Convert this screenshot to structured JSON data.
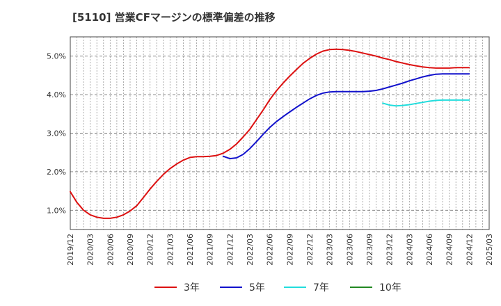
{
  "chart_data": {
    "type": "line",
    "title": "[5110]  営業CFマージンの標準偏差の推移",
    "xlabel": "",
    "ylabel": "",
    "ylim": [
      0.5,
      5.5
    ],
    "yticks": [
      1.0,
      2.0,
      3.0,
      4.0,
      5.0
    ],
    "ytick_labels": [
      "1.0%",
      "2.0%",
      "3.0%",
      "4.0%",
      "5.0%"
    ],
    "xlim": [
      "2019-12",
      "2025-03"
    ],
    "xtick_labels": [
      "2019/12",
      "2020/03",
      "2020/06",
      "2020/09",
      "2020/12",
      "2021/03",
      "2021/06",
      "2021/09",
      "2021/12",
      "2022/03",
      "2022/06",
      "2022/09",
      "2022/12",
      "2023/03",
      "2023/06",
      "2023/09",
      "2023/12",
      "2024/03",
      "2024/06",
      "2024/09",
      "2024/12",
      "2025/03"
    ],
    "grid": true,
    "legend_position": "bottom",
    "series": [
      {
        "name": "3年",
        "color": "#dd1111",
        "x": [
          "2019-12",
          "2020-01",
          "2020-02",
          "2020-03",
          "2020-04",
          "2020-05",
          "2020-06",
          "2020-07",
          "2020-08",
          "2020-09",
          "2020-10",
          "2020-11",
          "2020-12",
          "2021-01",
          "2021-02",
          "2021-03",
          "2021-04",
          "2021-05",
          "2021-06",
          "2021-07",
          "2021-08",
          "2021-09",
          "2021-10",
          "2021-11",
          "2021-12",
          "2022-01",
          "2022-02",
          "2022-03",
          "2022-04",
          "2022-05",
          "2022-06",
          "2022-07",
          "2022-08",
          "2022-09",
          "2022-10",
          "2022-11",
          "2022-12",
          "2023-01",
          "2023-02",
          "2023-03",
          "2023-04",
          "2023-05",
          "2023-06",
          "2023-07",
          "2023-08",
          "2023-09",
          "2023-10",
          "2023-11",
          "2023-12",
          "2024-01",
          "2024-02",
          "2024-03",
          "2024-04",
          "2024-05",
          "2024-06",
          "2024-07",
          "2024-08",
          "2024-09",
          "2024-10",
          "2024-11",
          "2024-12"
        ],
        "values": [
          1.48,
          1.2,
          1.0,
          0.88,
          0.82,
          0.79,
          0.79,
          0.82,
          0.88,
          0.98,
          1.12,
          1.33,
          1.55,
          1.75,
          1.93,
          2.08,
          2.2,
          2.3,
          2.37,
          2.39,
          2.39,
          2.4,
          2.42,
          2.48,
          2.58,
          2.72,
          2.9,
          3.1,
          3.35,
          3.6,
          3.87,
          4.1,
          4.3,
          4.48,
          4.65,
          4.81,
          4.94,
          5.05,
          5.13,
          5.17,
          5.18,
          5.17,
          5.15,
          5.12,
          5.08,
          5.04,
          5.0,
          4.95,
          4.91,
          4.86,
          4.82,
          4.78,
          4.75,
          4.72,
          4.7,
          4.69,
          4.69,
          4.69,
          4.7,
          4.7,
          4.7
        ]
      },
      {
        "name": "5年",
        "color": "#1111cc",
        "x": [
          "2021-11",
          "2021-12",
          "2022-01",
          "2022-02",
          "2022-03",
          "2022-04",
          "2022-05",
          "2022-06",
          "2022-07",
          "2022-08",
          "2022-09",
          "2022-10",
          "2022-11",
          "2022-12",
          "2023-01",
          "2023-02",
          "2023-03",
          "2023-04",
          "2023-05",
          "2023-06",
          "2023-07",
          "2023-08",
          "2023-09",
          "2023-10",
          "2023-11",
          "2023-12",
          "2024-01",
          "2024-02",
          "2024-03",
          "2024-04",
          "2024-05",
          "2024-06",
          "2024-07",
          "2024-08",
          "2024-09",
          "2024-10",
          "2024-11",
          "2024-12"
        ],
        "values": [
          2.4,
          2.34,
          2.36,
          2.45,
          2.6,
          2.78,
          2.97,
          3.15,
          3.3,
          3.43,
          3.55,
          3.67,
          3.78,
          3.89,
          3.98,
          4.04,
          4.07,
          4.08,
          4.08,
          4.08,
          4.08,
          4.08,
          4.09,
          4.11,
          4.15,
          4.2,
          4.25,
          4.3,
          4.36,
          4.41,
          4.46,
          4.5,
          4.53,
          4.54,
          4.54,
          4.54,
          4.54,
          4.54
        ]
      },
      {
        "name": "7年",
        "color": "#22dddd",
        "x": [
          "2023-11",
          "2023-12",
          "2024-01",
          "2024-02",
          "2024-03",
          "2024-04",
          "2024-05",
          "2024-06",
          "2024-07",
          "2024-08",
          "2024-09",
          "2024-10",
          "2024-11",
          "2024-12"
        ],
        "values": [
          3.78,
          3.73,
          3.71,
          3.72,
          3.74,
          3.77,
          3.8,
          3.83,
          3.85,
          3.86,
          3.86,
          3.86,
          3.86,
          3.86
        ]
      },
      {
        "name": "10年",
        "color": "#228822",
        "x": [],
        "values": []
      }
    ]
  }
}
